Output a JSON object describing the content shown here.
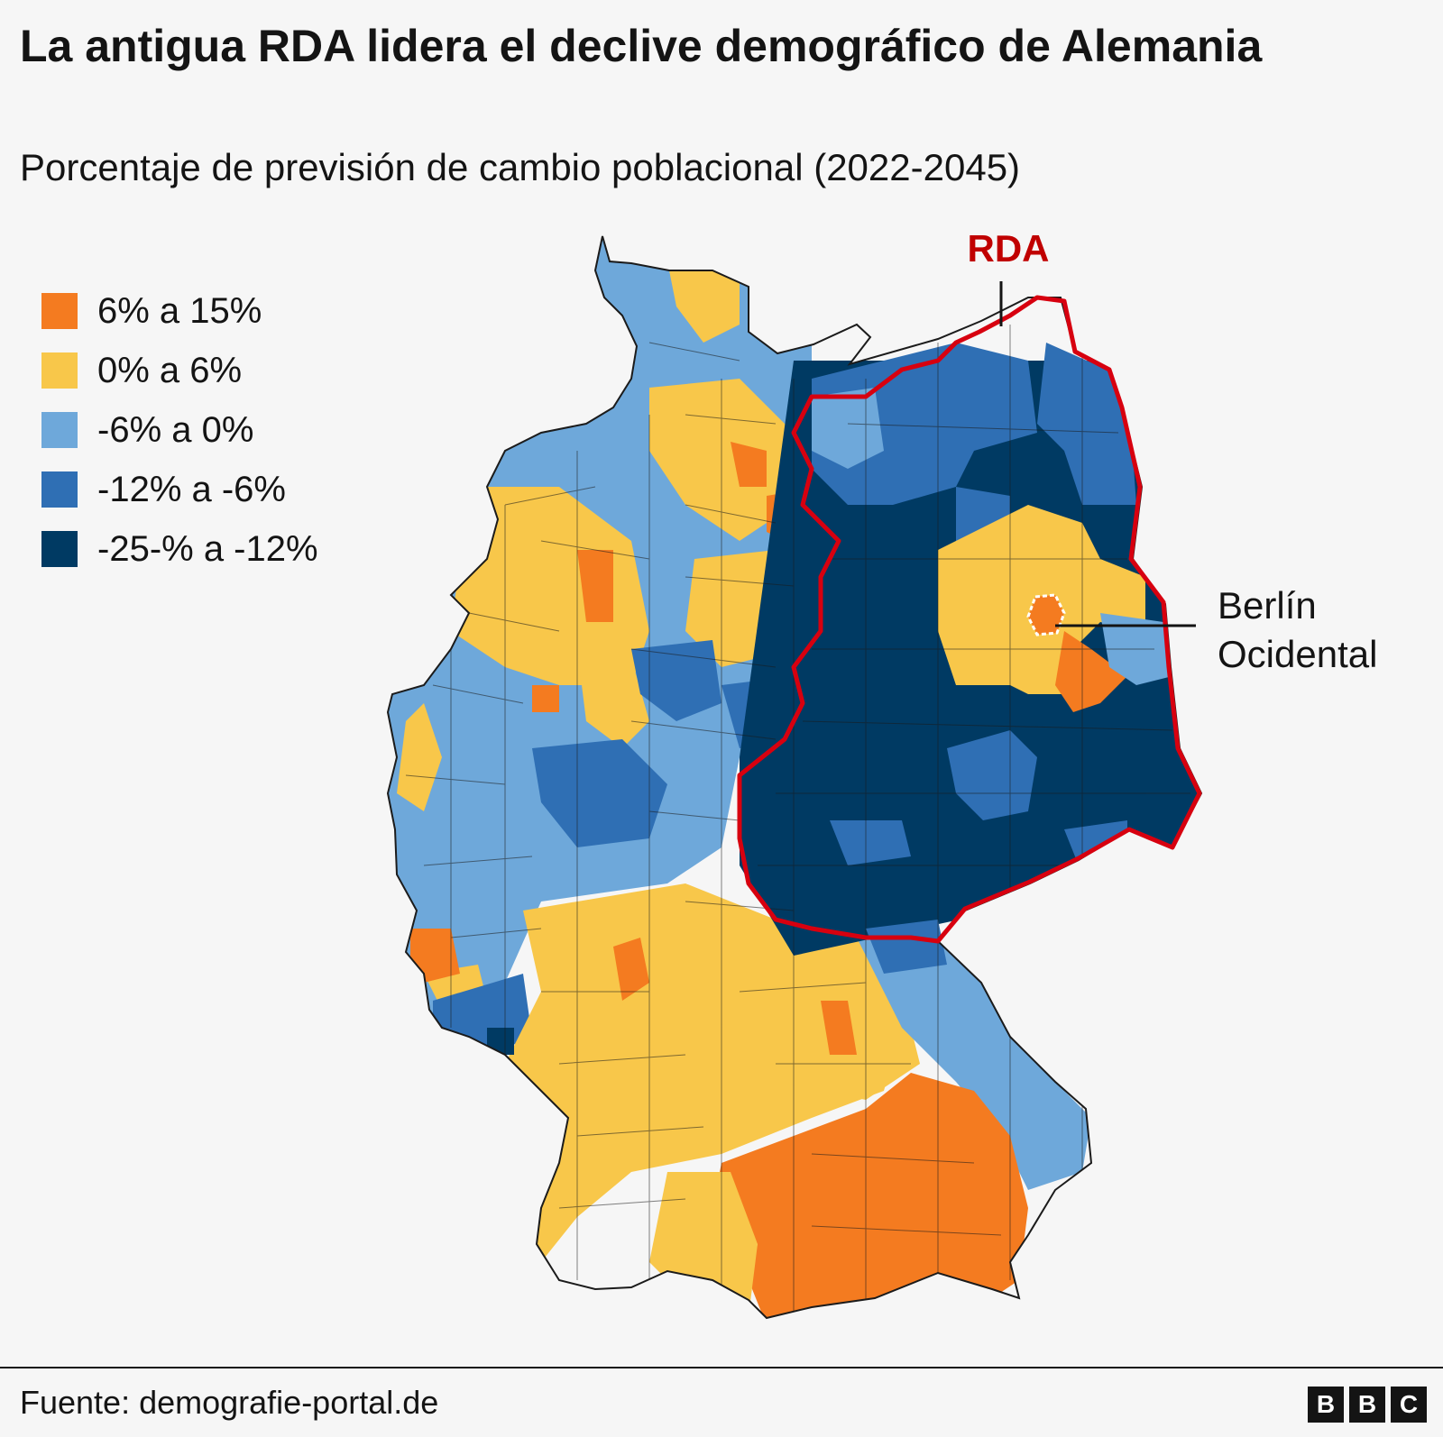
{
  "title": "La antigua RDA lidera el declive demográfico de Alemania",
  "subtitle": "Porcentaje de previsión de cambio poblacional (2022-2045)",
  "legend": [
    {
      "label": "6% a 15%",
      "color": "#f47b20"
    },
    {
      "label": "0% a 6%",
      "color": "#f8c74a"
    },
    {
      "label": "-6% a 0%",
      "color": "#6ea8da"
    },
    {
      "label": "-12% a -6%",
      "color": "#2f6fb4"
    },
    {
      "label": "-25-% a -12%",
      "color": "#003a63"
    }
  ],
  "map": {
    "rda_label": "RDA",
    "rda_color": "#d7000f",
    "berlin_label_line1": "Berlín",
    "berlin_label_line2": "Ocidental"
  },
  "footer": {
    "source": "Fuente: demografie-portal.de",
    "logo": [
      "B",
      "B",
      "C"
    ]
  }
}
